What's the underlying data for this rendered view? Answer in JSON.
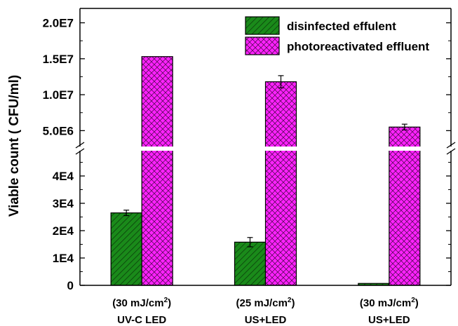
{
  "chart_data": {
    "type": "bar",
    "ylabel": "Viable count ( CFU/ml)",
    "axis_break": true,
    "y_lower": {
      "range": [
        0,
        50000
      ],
      "ticks": [
        0,
        10000,
        20000,
        30000,
        40000
      ],
      "tick_labels": [
        "0",
        "1E4",
        "2E4",
        "3E4",
        "4E4"
      ]
    },
    "y_upper": {
      "range": [
        2500000,
        22000000
      ],
      "ticks": [
        5000000,
        10000000,
        15000000,
        20000000
      ],
      "tick_labels": [
        "5.0E6",
        "1.0E7",
        "1.5E7",
        "2.0E7"
      ]
    },
    "categories": [
      {
        "line1": "(30 mJ/cm",
        "sup": "2",
        "line1_end": ")",
        "line2": "UV-C LED"
      },
      {
        "line1": "(25 mJ/cm",
        "sup": "2",
        "line1_end": ")",
        "line2": "US+LED"
      },
      {
        "line1": "(30 mJ/cm",
        "sup": "2",
        "line1_end": ")",
        "line2": "US+LED"
      }
    ],
    "series": [
      {
        "name": "disinfected effulent",
        "values": [
          26500,
          15800,
          700
        ],
        "errors": [
          1000,
          1700,
          0
        ],
        "color": "#1a8a1a",
        "pattern": "diagonal-hatch"
      },
      {
        "name": "photoreactivated effluent",
        "values": [
          15300000,
          11800000,
          5500000
        ],
        "errors": [
          0,
          850000,
          400000
        ],
        "color": "#ff22ff",
        "pattern": "crosshatch"
      }
    ],
    "legend": "top-right",
    "grid": false
  }
}
